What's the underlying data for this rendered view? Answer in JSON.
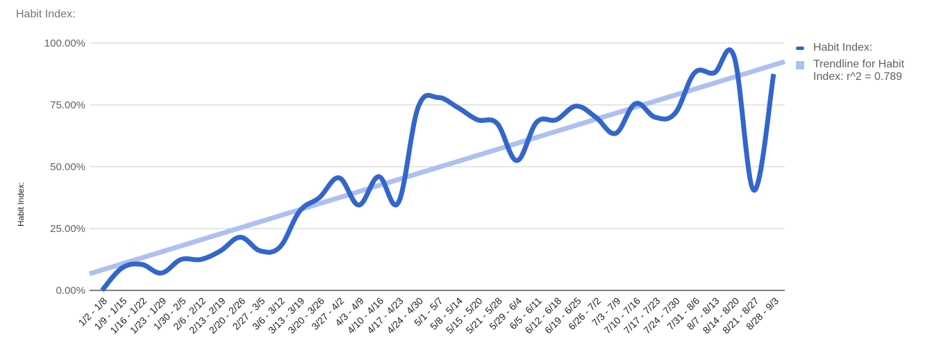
{
  "colors": {
    "series": "#3366cc",
    "trend": "#aec0f0",
    "grid": "#cccccc",
    "axis": "#333333"
  },
  "chart_data": {
    "type": "line",
    "title": "Habit Index:",
    "xlabel": "",
    "ylabel": "Habit Index:",
    "ylim": [
      0,
      100
    ],
    "yticks": [
      "0.00%",
      "25.00%",
      "50.00%",
      "75.00%",
      "100.00%"
    ],
    "grid": true,
    "legend_position": "right",
    "categories": [
      "1/2 - 1/8",
      "1/9 - 1/15",
      "1/16 - 1/22",
      "1/23 - 1/29",
      "1/30 - 2/5",
      "2/6 - 2/12",
      "2/13 - 2/19",
      "2/20 - 2/26",
      "2/27 - 3/5",
      "3/6 - 3/12",
      "3/13 - 3/19",
      "3/20 - 3/26",
      "3/27 - 4/2",
      "4/3 - 4/9",
      "4/10 - 4/16",
      "4/17 - 4/23",
      "4/24 - 4/30",
      "5/1 - 5/7",
      "5/8 - 5/14",
      "5/15 - 5/20",
      "5/21 - 5/28",
      "5/29 - 6/4",
      "6/5 - 6/11",
      "6/12 - 6/18",
      "6/19 - 6/25",
      "6/26 - 7/2",
      "7/3 - 7/9",
      "7/10 - 7/16",
      "7/17 - 7/23",
      "7/24 - 7/30",
      "7/31 - 8/6",
      "8/7 - 8/13",
      "8/14 - 8/20",
      "8/21 - 8/27",
      "8/28 - 9/3"
    ],
    "series": [
      {
        "name": "Habit Index:",
        "values": [
          0,
          9,
          10.5,
          7,
          12.5,
          12.5,
          16,
          21.5,
          16,
          17.5,
          32,
          37.5,
          45.5,
          34.5,
          46,
          35.5,
          74,
          78,
          74,
          69,
          67.5,
          52.5,
          68,
          69,
          74.5,
          70,
          63.5,
          75.5,
          70,
          71.5,
          88,
          88,
          94.5,
          40.5,
          87.5
        ]
      }
    ],
    "trendline": {
      "name": "Trendline for Habit Index: r^2 = 0.789",
      "start": 6.7,
      "end": 92.5
    }
  },
  "legend": {
    "series_label": "Habit Index:",
    "trend_label_line1": "Trendline for Habit",
    "trend_label_line2": "Index: r^2 = 0.789"
  }
}
